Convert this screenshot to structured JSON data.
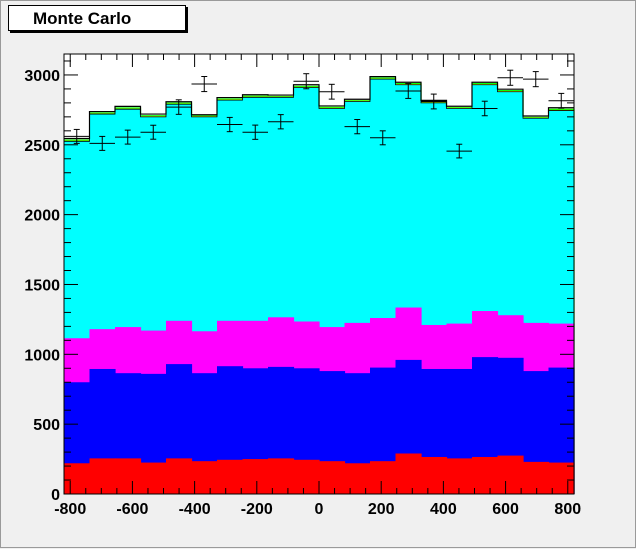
{
  "title": "Monte Carlo",
  "chart_data": {
    "type": "stacked-histogram",
    "title": "Monte Carlo",
    "xlabel": "",
    "ylabel": "",
    "xlim": [
      -820,
      820
    ],
    "ylim": [
      0,
      3150
    ],
    "x_ticks": [
      -800,
      -600,
      -400,
      -200,
      0,
      200,
      400,
      600,
      800
    ],
    "y_ticks": [
      0,
      500,
      1000,
      1500,
      2000,
      2500,
      3000
    ],
    "bin_edges": [
      -820,
      -738,
      -656,
      -574,
      -492,
      -410,
      -328,
      -246,
      -164,
      -82,
      0,
      82,
      164,
      246,
      328,
      410,
      492,
      574,
      656,
      738,
      820
    ],
    "stack_colors": [
      "#ff0000",
      "#0000ff",
      "#ff00ff",
      "#00ffff",
      "#ffff00",
      "#00ff00"
    ],
    "stack_tops": {
      "red": [
        220,
        255,
        255,
        225,
        255,
        235,
        245,
        250,
        255,
        245,
        235,
        220,
        235,
        290,
        265,
        255,
        265,
        275,
        230,
        225
      ],
      "blue": [
        800,
        895,
        865,
        860,
        930,
        865,
        915,
        900,
        910,
        900,
        880,
        865,
        905,
        960,
        895,
        895,
        980,
        975,
        880,
        905
      ],
      "magenta": [
        1115,
        1180,
        1195,
        1170,
        1240,
        1165,
        1240,
        1240,
        1265,
        1235,
        1195,
        1225,
        1260,
        1335,
        1210,
        1220,
        1310,
        1280,
        1225,
        1220
      ],
      "cyan": [
        2525,
        2720,
        2755,
        2700,
        2790,
        2700,
        2820,
        2840,
        2840,
        2910,
        2760,
        2810,
        2970,
        2930,
        2800,
        2760,
        2930,
        2880,
        2690,
        2745
      ],
      "yellow": [
        2530,
        2725,
        2760,
        2705,
        2795,
        2705,
        2825,
        2845,
        2845,
        2915,
        2765,
        2815,
        2975,
        2935,
        2805,
        2765,
        2935,
        2885,
        2695,
        2750
      ],
      "green": [
        2538,
        2732,
        2768,
        2712,
        2802,
        2710,
        2832,
        2852,
        2850,
        2922,
        2772,
        2820,
        2982,
        2942,
        2812,
        2770,
        2942,
        2892,
        2700,
        2758
      ],
      "total": [
        2545,
        2738,
        2775,
        2720,
        2808,
        2715,
        2838,
        2858,
        2856,
        2930,
        2778,
        2826,
        2988,
        2948,
        2818,
        2776,
        2948,
        2898,
        2706,
        2765
      ]
    },
    "data_points": {
      "x": [
        -779,
        -697,
        -615,
        -533,
        -451,
        -369,
        -287,
        -205,
        -123,
        -41,
        41,
        123,
        205,
        287,
        369,
        451,
        533,
        615,
        697,
        779
      ],
      "y": [
        2560,
        2510,
        2555,
        2590,
        2770,
        2935,
        2645,
        2590,
        2665,
        2955,
        2880,
        2630,
        2550,
        2885,
        2810,
        2455,
        2760,
        2980,
        2970,
        2815
      ],
      "yerr": [
        50,
        50,
        50,
        50,
        52,
        54,
        51,
        51,
        51,
        54,
        53,
        51,
        50,
        53,
        53,
        49,
        52,
        54,
        54,
        53
      ]
    }
  }
}
